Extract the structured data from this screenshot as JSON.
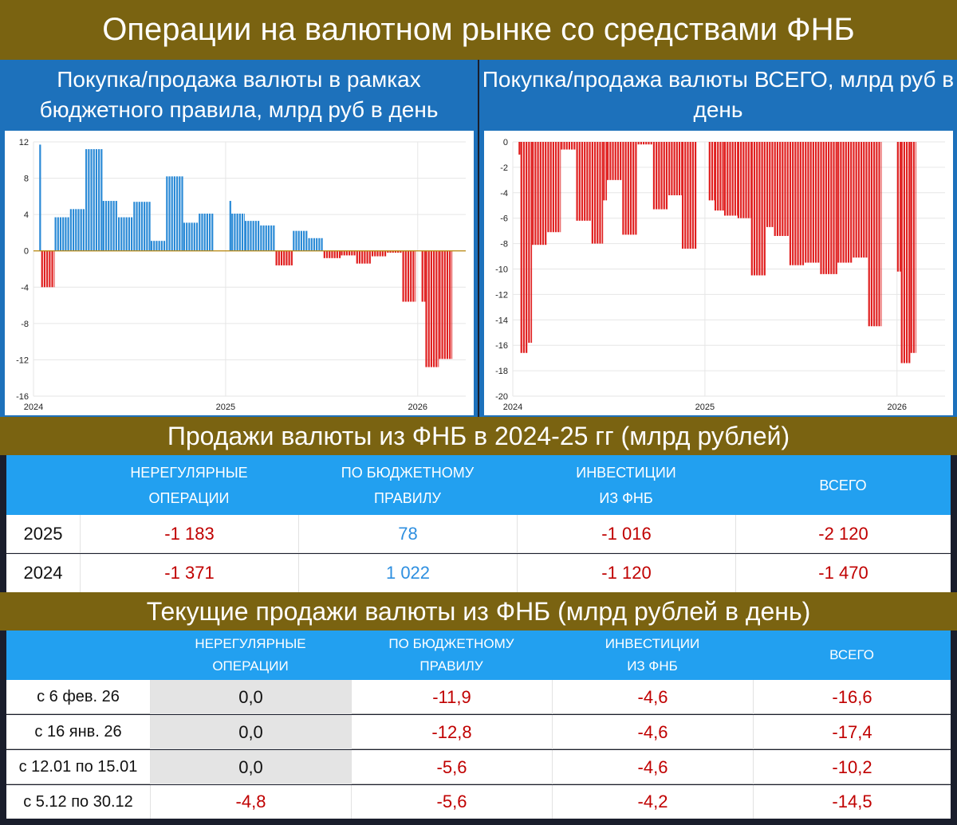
{
  "title": "Операции на валютном рынке со средствами ФНБ",
  "left_chart_title": "Покупка/продажа валюты в рамках бюджетного правила, млрд руб в день",
  "right_chart_title": "Покупка/продажа валюты ВСЕГО, млрд руб в день",
  "colors": {
    "band": "#7a6311",
    "panel": "#1d71bb",
    "header": "#22a0f0",
    "bar_pos": "#2a8ad6",
    "bar_neg": "#e02020",
    "text_neg": "#c00000",
    "text_pos": "#2e8fe0"
  },
  "chart_data": [
    {
      "type": "bar",
      "title": "Покупка/продажа валюты в рамках бюджетного правила, млрд руб в день",
      "xlabel": "",
      "ylabel": "млрд руб в день",
      "ylim": [
        -16,
        12
      ],
      "yticks": [
        12,
        8,
        4,
        0,
        -4,
        -8,
        -12,
        -16
      ],
      "xlim": [
        2024.0,
        2026.25
      ],
      "xticks": [
        2024,
        2025,
        2026
      ],
      "grid": true,
      "series": [
        {
          "name": "По бюджетному правилу",
          "segments": [
            {
              "start": 2024.03,
              "end": 2024.04,
              "value": 11.7
            },
            {
              "start": 2024.04,
              "end": 2024.11,
              "value": -4.0
            },
            {
              "start": 2024.11,
              "end": 2024.19,
              "value": 3.7
            },
            {
              "start": 2024.19,
              "end": 2024.27,
              "value": 4.6
            },
            {
              "start": 2024.27,
              "end": 2024.36,
              "value": 11.2
            },
            {
              "start": 2024.36,
              "end": 2024.44,
              "value": 5.5
            },
            {
              "start": 2024.44,
              "end": 2024.52,
              "value": 3.7
            },
            {
              "start": 2024.52,
              "end": 2024.61,
              "value": 5.4
            },
            {
              "start": 2024.61,
              "end": 2024.69,
              "value": 1.1
            },
            {
              "start": 2024.69,
              "end": 2024.78,
              "value": 8.2
            },
            {
              "start": 2024.78,
              "end": 2024.86,
              "value": 3.1
            },
            {
              "start": 2024.86,
              "end": 2024.94,
              "value": 4.1
            },
            {
              "start": 2025.02,
              "end": 2025.03,
              "value": 5.5
            },
            {
              "start": 2025.03,
              "end": 2025.1,
              "value": 4.1
            },
            {
              "start": 2025.1,
              "end": 2025.18,
              "value": 3.3
            },
            {
              "start": 2025.18,
              "end": 2025.26,
              "value": 2.8
            },
            {
              "start": 2025.26,
              "end": 2025.35,
              "value": -1.6
            },
            {
              "start": 2025.35,
              "end": 2025.43,
              "value": 2.2
            },
            {
              "start": 2025.43,
              "end": 2025.51,
              "value": 1.4
            },
            {
              "start": 2025.51,
              "end": 2025.6,
              "value": -0.8
            },
            {
              "start": 2025.6,
              "end": 2025.68,
              "value": -0.5
            },
            {
              "start": 2025.68,
              "end": 2025.76,
              "value": -1.4
            },
            {
              "start": 2025.76,
              "end": 2025.84,
              "value": -0.6
            },
            {
              "start": 2025.84,
              "end": 2025.92,
              "value": -0.2
            },
            {
              "start": 2025.92,
              "end": 2025.99,
              "value": -5.6
            },
            {
              "start": 2026.02,
              "end": 2026.04,
              "value": -5.6
            },
            {
              "start": 2026.04,
              "end": 2026.11,
              "value": -12.8
            },
            {
              "start": 2026.11,
              "end": 2026.18,
              "value": -11.9
            }
          ]
        }
      ]
    },
    {
      "type": "bar",
      "title": "Покупка/продажа валюты ВСЕГО, млрд руб в день",
      "xlabel": "",
      "ylabel": "млрд руб в день",
      "ylim": [
        -20,
        0
      ],
      "yticks": [
        0,
        -2,
        -4,
        -6,
        -8,
        -10,
        -12,
        -14,
        -16,
        -18,
        -20
      ],
      "xlim": [
        2024.0,
        2026.25
      ],
      "xticks": [
        2024,
        2025,
        2026
      ],
      "grid": true,
      "series": [
        {
          "name": "Всего",
          "segments": [
            {
              "start": 2024.03,
              "end": 2024.04,
              "value": -1.0
            },
            {
              "start": 2024.04,
              "end": 2024.08,
              "value": -16.6
            },
            {
              "start": 2024.08,
              "end": 2024.1,
              "value": -15.8
            },
            {
              "start": 2024.1,
              "end": 2024.18,
              "value": -8.1
            },
            {
              "start": 2024.18,
              "end": 2024.25,
              "value": -7.1
            },
            {
              "start": 2024.25,
              "end": 2024.33,
              "value": -0.6
            },
            {
              "start": 2024.33,
              "end": 2024.41,
              "value": -6.2
            },
            {
              "start": 2024.41,
              "end": 2024.47,
              "value": -8.0
            },
            {
              "start": 2024.47,
              "end": 2024.49,
              "value": -4.6
            },
            {
              "start": 2024.49,
              "end": 2024.57,
              "value": -3.0
            },
            {
              "start": 2024.57,
              "end": 2024.65,
              "value": -7.3
            },
            {
              "start": 2024.65,
              "end": 2024.73,
              "value": -0.2
            },
            {
              "start": 2024.73,
              "end": 2024.81,
              "value": -5.3
            },
            {
              "start": 2024.81,
              "end": 2024.88,
              "value": -4.2
            },
            {
              "start": 2024.88,
              "end": 2024.96,
              "value": -8.4
            },
            {
              "start": 2025.02,
              "end": 2025.05,
              "value": -4.6
            },
            {
              "start": 2025.05,
              "end": 2025.1,
              "value": -5.4
            },
            {
              "start": 2025.1,
              "end": 2025.17,
              "value": -5.8
            },
            {
              "start": 2025.17,
              "end": 2025.24,
              "value": -6.0
            },
            {
              "start": 2025.24,
              "end": 2025.32,
              "value": -10.5
            },
            {
              "start": 2025.32,
              "end": 2025.36,
              "value": -6.7
            },
            {
              "start": 2025.36,
              "end": 2025.44,
              "value": -7.4
            },
            {
              "start": 2025.44,
              "end": 2025.52,
              "value": -9.7
            },
            {
              "start": 2025.52,
              "end": 2025.6,
              "value": -9.5
            },
            {
              "start": 2025.6,
              "end": 2025.69,
              "value": -10.4
            },
            {
              "start": 2025.69,
              "end": 2025.77,
              "value": -9.5
            },
            {
              "start": 2025.77,
              "end": 2025.85,
              "value": -9.1
            },
            {
              "start": 2025.85,
              "end": 2025.92,
              "value": -14.5
            },
            {
              "start": 2026.0,
              "end": 2026.02,
              "value": -10.2
            },
            {
              "start": 2026.02,
              "end": 2026.07,
              "value": -17.4
            },
            {
              "start": 2026.07,
              "end": 2026.1,
              "value": -16.6
            }
          ]
        }
      ]
    }
  ],
  "annual_title": "Продажи валюты из ФНБ в 2024-25 гг (млрд рублей)",
  "annual_table": {
    "headers": [
      {
        "line1": "НЕРЕГУЛЯРНЫЕ",
        "line2": "ОПЕРАЦИИ"
      },
      {
        "line1": "ПО БЮДЖЕТНОМУ",
        "line2": "ПРАВИЛУ"
      },
      {
        "line1": "ИНВЕСТИЦИИ",
        "line2": "ИЗ ФНБ"
      },
      {
        "line1": "ВСЕГО",
        "line2": ""
      }
    ],
    "rows": [
      {
        "label": "2025",
        "values": [
          "-1 183",
          "78",
          "-1 016",
          "-2 120"
        ]
      },
      {
        "label": "2024",
        "values": [
          "-1 371",
          "1 022",
          "-1 120",
          "-1 470"
        ]
      }
    ]
  },
  "current_title": "Текущие продажи валюты из ФНБ (млрд рублей в день)",
  "current_table": {
    "headers": [
      {
        "line1": "НЕРЕГУЛЯРНЫЕ",
        "line2": "ОПЕРАЦИИ"
      },
      {
        "line1": "ПО БЮДЖЕТНОМУ",
        "line2": "ПРАВИЛУ"
      },
      {
        "line1": "ИНВЕСТИЦИИ",
        "line2": "ИЗ ФНБ"
      },
      {
        "line1": "ВСЕГО",
        "line2": ""
      }
    ],
    "rows": [
      {
        "label": "с 6 фев. 26",
        "values": [
          "0,0",
          "-11,9",
          "-4,6",
          "-16,6"
        ]
      },
      {
        "label": "с 16 янв. 26",
        "values": [
          "0,0",
          "-12,8",
          "-4,6",
          "-17,4"
        ]
      },
      {
        "label": "с 12.01 по 15.01",
        "values": [
          "0,0",
          "-5,6",
          "-4,6",
          "-10,2"
        ]
      },
      {
        "label": "с 5.12 по 30.12",
        "values": [
          "-4,8",
          "-5,6",
          "-4,2",
          "-14,5"
        ]
      }
    ]
  }
}
